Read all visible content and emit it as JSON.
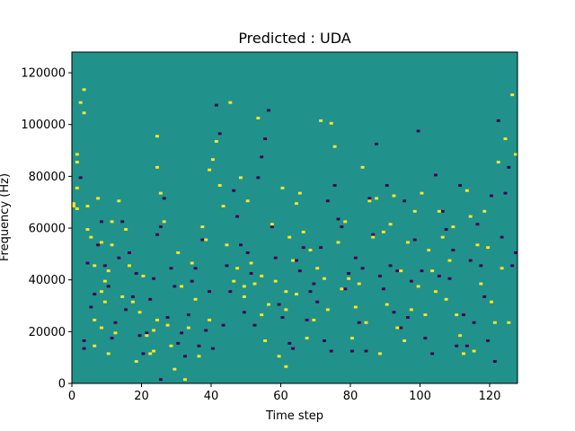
{
  "chart_data": {
    "type": "heatmap",
    "title": "Predicted : UDA",
    "xlabel": "Time step",
    "ylabel": "Frequency (Hz)",
    "xlim": [
      0,
      128
    ],
    "ylim": [
      0,
      128000
    ],
    "xticks": [
      0,
      20,
      40,
      60,
      80,
      100,
      120
    ],
    "yticks": [
      0,
      20000,
      40000,
      60000,
      80000,
      100000,
      120000
    ],
    "ytick_labels": [
      "0",
      "20000",
      "40000",
      "60000",
      "80000",
      "100000",
      "120000"
    ],
    "grid": false,
    "legend": "none",
    "n_time_steps": 128,
    "n_freq_bins": 128,
    "freq_bin_hz": 1000,
    "class_colors": {
      "background": "#21918c",
      "class_low": "#440154",
      "class_high": "#fde725"
    },
    "default_class": "background",
    "cells_class_high": [
      [
        0,
        69
      ],
      [
        0,
        68
      ],
      [
        1,
        88
      ],
      [
        1,
        85
      ],
      [
        1,
        75
      ],
      [
        1,
        67
      ],
      [
        2,
        108
      ],
      [
        3,
        113
      ],
      [
        3,
        104
      ],
      [
        4,
        68
      ],
      [
        4,
        59
      ],
      [
        5,
        56
      ],
      [
        6,
        45
      ],
      [
        6,
        24
      ],
      [
        6,
        14
      ],
      [
        7,
        71
      ],
      [
        8,
        54
      ],
      [
        8,
        35
      ],
      [
        8,
        21
      ],
      [
        9,
        39
      ],
      [
        9,
        31
      ],
      [
        10,
        11
      ],
      [
        10,
        43
      ],
      [
        11,
        62
      ],
      [
        11,
        53
      ],
      [
        12,
        19
      ],
      [
        13,
        70
      ],
      [
        14,
        33
      ],
      [
        15,
        59
      ],
      [
        16,
        45
      ],
      [
        17,
        31
      ],
      [
        18,
        8
      ],
      [
        19,
        27
      ],
      [
        20,
        41
      ],
      [
        21,
        18
      ],
      [
        22,
        11
      ],
      [
        23,
        12
      ],
      [
        23,
        20
      ],
      [
        24,
        95
      ],
      [
        24,
        83
      ],
      [
        24,
        24
      ],
      [
        25,
        73
      ],
      [
        26,
        62
      ],
      [
        27,
        22
      ],
      [
        28,
        14
      ],
      [
        29,
        5
      ],
      [
        30,
        50
      ],
      [
        31,
        37
      ],
      [
        32,
        1
      ],
      [
        33,
        21
      ],
      [
        34,
        46
      ],
      [
        35,
        32
      ],
      [
        36,
        10
      ],
      [
        37,
        60
      ],
      [
        38,
        55
      ],
      [
        39,
        82
      ],
      [
        39,
        24
      ],
      [
        40,
        86
      ],
      [
        41,
        93
      ],
      [
        42,
        76
      ],
      [
        43,
        68
      ],
      [
        44,
        53
      ],
      [
        45,
        108
      ],
      [
        46,
        39
      ],
      [
        47,
        44
      ],
      [
        48,
        79
      ],
      [
        49,
        37
      ],
      [
        49,
        33
      ],
      [
        50,
        70
      ],
      [
        51,
        46
      ],
      [
        52,
        38
      ],
      [
        53,
        102
      ],
      [
        54,
        41
      ],
      [
        54,
        26
      ],
      [
        55,
        16
      ],
      [
        56,
        30
      ],
      [
        57,
        61
      ],
      [
        58,
        39
      ],
      [
        59,
        10
      ],
      [
        60,
        75
      ],
      [
        61,
        6
      ],
      [
        61,
        28
      ],
      [
        61,
        35
      ],
      [
        62,
        56
      ],
      [
        63,
        47
      ],
      [
        64,
        69
      ],
      [
        64,
        34
      ],
      [
        65,
        73
      ],
      [
        66,
        58
      ],
      [
        67,
        17
      ],
      [
        68,
        51
      ],
      [
        69,
        24
      ],
      [
        70,
        44
      ],
      [
        71,
        101
      ],
      [
        72,
        40
      ],
      [
        73,
        28
      ],
      [
        74,
        100
      ],
      [
        75,
        91
      ],
      [
        76,
        54
      ],
      [
        77,
        36
      ],
      [
        78,
        62
      ],
      [
        79,
        40
      ],
      [
        80,
        17
      ],
      [
        81,
        29
      ],
      [
        82,
        38
      ],
      [
        83,
        83
      ],
      [
        84,
        23
      ],
      [
        85,
        70
      ],
      [
        86,
        56
      ],
      [
        87,
        71
      ],
      [
        88,
        11
      ],
      [
        89,
        58
      ],
      [
        90,
        30
      ],
      [
        91,
        61
      ],
      [
        92,
        72
      ],
      [
        93,
        21
      ],
      [
        94,
        43
      ],
      [
        95,
        16
      ],
      [
        96,
        54
      ],
      [
        97,
        28
      ],
      [
        98,
        66
      ],
      [
        99,
        37
      ],
      [
        100,
        73
      ],
      [
        101,
        26
      ],
      [
        102,
        51
      ],
      [
        103,
        43
      ],
      [
        104,
        35
      ],
      [
        105,
        66
      ],
      [
        106,
        56
      ],
      [
        107,
        32
      ],
      [
        108,
        47
      ],
      [
        109,
        60
      ],
      [
        110,
        26
      ],
      [
        111,
        18
      ],
      [
        112,
        11
      ],
      [
        113,
        74
      ],
      [
        114,
        64
      ],
      [
        115,
        12
      ],
      [
        116,
        53
      ],
      [
        117,
        38
      ],
      [
        118,
        66
      ],
      [
        119,
        52
      ],
      [
        120,
        31
      ],
      [
        121,
        23
      ],
      [
        122,
        85
      ],
      [
        123,
        44
      ],
      [
        124,
        94
      ],
      [
        125,
        23
      ],
      [
        126,
        111
      ],
      [
        127,
        88
      ]
    ],
    "cells_class_low": [
      [
        2,
        79
      ],
      [
        3,
        16
      ],
      [
        3,
        13
      ],
      [
        4,
        46
      ],
      [
        5,
        29
      ],
      [
        6,
        34
      ],
      [
        7,
        53
      ],
      [
        8,
        62
      ],
      [
        9,
        45
      ],
      [
        10,
        37
      ],
      [
        11,
        17
      ],
      [
        12,
        23
      ],
      [
        13,
        48
      ],
      [
        14,
        62
      ],
      [
        15,
        28
      ],
      [
        16,
        50
      ],
      [
        17,
        33
      ],
      [
        18,
        42
      ],
      [
        19,
        18
      ],
      [
        20,
        11
      ],
      [
        21,
        19
      ],
      [
        22,
        32
      ],
      [
        23,
        40
      ],
      [
        24,
        57
      ],
      [
        25,
        1
      ],
      [
        25,
        60
      ],
      [
        26,
        71
      ],
      [
        27,
        25
      ],
      [
        28,
        44
      ],
      [
        29,
        37
      ],
      [
        30,
        15
      ],
      [
        31,
        19
      ],
      [
        32,
        10
      ],
      [
        33,
        26
      ],
      [
        34,
        39
      ],
      [
        35,
        44
      ],
      [
        36,
        14
      ],
      [
        37,
        55
      ],
      [
        38,
        20
      ],
      [
        39,
        35
      ],
      [
        40,
        13
      ],
      [
        41,
        107
      ],
      [
        42,
        96
      ],
      [
        43,
        22
      ],
      [
        44,
        45
      ],
      [
        45,
        35
      ],
      [
        46,
        74
      ],
      [
        47,
        64
      ],
      [
        48,
        53
      ],
      [
        49,
        27
      ],
      [
        50,
        50
      ],
      [
        51,
        42
      ],
      [
        52,
        22
      ],
      [
        53,
        79
      ],
      [
        54,
        87
      ],
      [
        55,
        94
      ],
      [
        56,
        105
      ],
      [
        57,
        60
      ],
      [
        58,
        48
      ],
      [
        59,
        30
      ],
      [
        60,
        25
      ],
      [
        62,
        15
      ],
      [
        63,
        13
      ],
      [
        64,
        47
      ],
      [
        65,
        43
      ],
      [
        66,
        52
      ],
      [
        67,
        24
      ],
      [
        68,
        35
      ],
      [
        69,
        38
      ],
      [
        70,
        31
      ],
      [
        71,
        52
      ],
      [
        72,
        16
      ],
      [
        73,
        70
      ],
      [
        74,
        12
      ],
      [
        75,
        76
      ],
      [
        76,
        63
      ],
      [
        77,
        60
      ],
      [
        78,
        36
      ],
      [
        79,
        42
      ],
      [
        80,
        12
      ],
      [
        81,
        48
      ],
      [
        82,
        23
      ],
      [
        83,
        44
      ],
      [
        84,
        12
      ],
      [
        85,
        71
      ],
      [
        86,
        57
      ],
      [
        87,
        92
      ],
      [
        88,
        41
      ],
      [
        89,
        36
      ],
      [
        90,
        76
      ],
      [
        91,
        45
      ],
      [
        92,
        27
      ],
      [
        93,
        43
      ],
      [
        94,
        21
      ],
      [
        95,
        70
      ],
      [
        96,
        25
      ],
      [
        97,
        39
      ],
      [
        98,
        55
      ],
      [
        99,
        97
      ],
      [
        100,
        43
      ],
      [
        101,
        17
      ],
      [
        102,
        51
      ],
      [
        103,
        11
      ],
      [
        104,
        80
      ],
      [
        105,
        41
      ],
      [
        106,
        66
      ],
      [
        107,
        59
      ],
      [
        108,
        40
      ],
      [
        109,
        51
      ],
      [
        110,
        14
      ],
      [
        111,
        76
      ],
      [
        112,
        26
      ],
      [
        113,
        14
      ],
      [
        114,
        47
      ],
      [
        115,
        23
      ],
      [
        116,
        61
      ],
      [
        117,
        45
      ],
      [
        118,
        33
      ],
      [
        119,
        16
      ],
      [
        120,
        72
      ],
      [
        121,
        8
      ],
      [
        122,
        101
      ],
      [
        123,
        56
      ],
      [
        124,
        73
      ],
      [
        125,
        83
      ],
      [
        126,
        45
      ],
      [
        127,
        50
      ]
    ]
  }
}
